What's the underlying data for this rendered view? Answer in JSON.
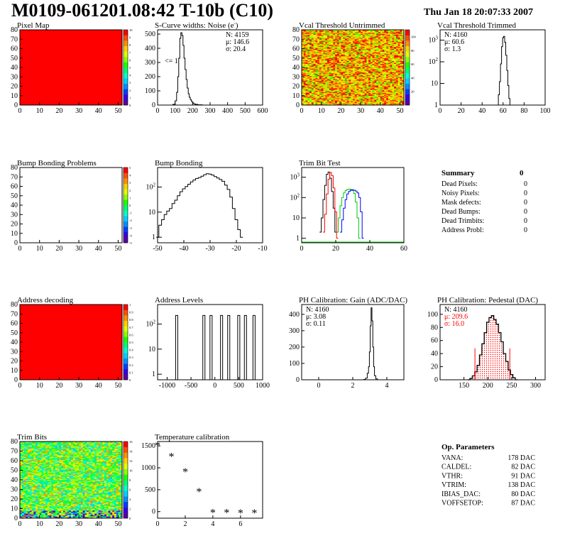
{
  "page": {
    "title": "M0109-061201.08:42 T-10b (C10)",
    "date": "Thu Jan 18 20:07:33 2007"
  },
  "colors": {
    "hist_line": "#000000",
    "red_series": "#ff0000",
    "green_series": "#00cc00",
    "blue_series": "#0000ff",
    "map_fill": "#ff0000",
    "palette": [
      "#5a00a0",
      "#3a00e6",
      "#0040ff",
      "#0090ff",
      "#00d0ff",
      "#00ffd0",
      "#00ff70",
      "#20ff00",
      "#90ff00",
      "#e0ff00",
      "#ffd000",
      "#ff9000",
      "#ff5000",
      "#ff0000"
    ]
  },
  "chart_data": [
    {
      "id": "pixel_map",
      "type": "heatmap",
      "title": "Pixel Map",
      "xlim": [
        0,
        52
      ],
      "ylim": [
        0,
        80
      ],
      "xticks": [
        0,
        10,
        20,
        30,
        40,
        50
      ],
      "yticks": [
        0,
        10,
        20,
        30,
        40,
        50,
        60,
        70,
        80
      ],
      "fill": "uniform",
      "value": 10,
      "zlim": [
        0,
        10
      ],
      "zticks": [
        0,
        1,
        2,
        3,
        4,
        5,
        6,
        7,
        8,
        9,
        10
      ]
    },
    {
      "id": "scurve",
      "type": "line",
      "title": "S-Curve widths: Noise (e",
      "title_sup": "-",
      "title_end": ")",
      "xlim": [
        0,
        600
      ],
      "ylim": [
        0,
        530
      ],
      "xticks": [
        0,
        100,
        200,
        300,
        400,
        500,
        600
      ],
      "yticks": [
        0,
        100,
        200,
        300,
        400,
        500
      ],
      "stats": {
        "N": "4159",
        "mu": "146.6",
        "sigma": "20.4"
      },
      "annotation": "<= 1",
      "x": [
        60,
        80,
        95,
        105,
        112,
        118,
        124,
        130,
        136,
        142,
        148,
        154,
        160,
        166,
        172,
        178,
        184,
        190,
        196,
        202,
        210,
        220,
        240,
        270
      ],
      "values": [
        0,
        0,
        5,
        30,
        90,
        200,
        330,
        470,
        510,
        490,
        420,
        330,
        250,
        180,
        120,
        80,
        55,
        38,
        26,
        16,
        9,
        5,
        2,
        0
      ]
    },
    {
      "id": "vcal_untrimmed",
      "type": "heatmap",
      "title": "Vcal Threshold Untrimmed",
      "xlim": [
        0,
        52
      ],
      "ylim": [
        0,
        80
      ],
      "xticks": [
        0,
        10,
        20,
        30,
        40,
        50
      ],
      "yticks": [
        0,
        10,
        20,
        30,
        40,
        50,
        60,
        70,
        80
      ],
      "fill": "random",
      "value_range": [
        60,
        110
      ],
      "zlim": [
        0,
        110
      ],
      "zticks": [
        20,
        40,
        60,
        80,
        100
      ]
    },
    {
      "id": "vcal_trimmed",
      "type": "line",
      "title": "Vcal Threshold Trimmed",
      "log": true,
      "xlim": [
        0,
        100
      ],
      "ylim": [
        1,
        3000
      ],
      "xticks": [
        0,
        20,
        40,
        60,
        80,
        100
      ],
      "yticks_log": [
        1,
        10,
        100,
        1000
      ],
      "stats": {
        "N": "4160",
        "mu": "60.6",
        "sigma": "1.3"
      },
      "x": [
        55,
        56,
        57,
        58,
        59,
        60,
        61,
        62,
        63,
        64,
        65,
        66,
        67
      ],
      "values": [
        1,
        3,
        12,
        80,
        500,
        1300,
        1500,
        800,
        200,
        40,
        8,
        2,
        1
      ]
    },
    {
      "id": "bump_problems",
      "type": "heatmap",
      "title": "Bump Bonding Problems",
      "xlim": [
        0,
        52
      ],
      "ylim": [
        0,
        80
      ],
      "xticks": [
        0,
        10,
        20,
        30,
        40,
        50
      ],
      "yticks": [
        0,
        10,
        20,
        30,
        40,
        50,
        60,
        70,
        80
      ],
      "fill": "empty",
      "zlim": [
        -5,
        5
      ],
      "zticks": [
        -5,
        -4,
        -3,
        -2,
        -1,
        0,
        1,
        2,
        3,
        4,
        5
      ]
    },
    {
      "id": "bump_bonding",
      "type": "line",
      "title": "Bump Bonding",
      "log": true,
      "xlim": [
        -50,
        -10
      ],
      "ylim": [
        0.6,
        600
      ],
      "xticks": [
        -50,
        -40,
        -30,
        -20,
        -10
      ],
      "yticks_log": [
        1,
        10,
        100
      ],
      "x": [
        -50,
        -49,
        -48,
        -47,
        -46,
        -45,
        -44,
        -43,
        -42,
        -41,
        -40,
        -39,
        -38,
        -37,
        -36,
        -35,
        -34,
        -33,
        -32,
        -31,
        -30,
        -29,
        -28,
        -27,
        -26,
        -25,
        -24,
        -23,
        -22,
        -21,
        -20,
        -19,
        -18
      ],
      "values": [
        1,
        3,
        5,
        8,
        11,
        14,
        22,
        30,
        45,
        65,
        85,
        105,
        130,
        160,
        190,
        220,
        240,
        270,
        310,
        340,
        330,
        300,
        260,
        230,
        200,
        170,
        120,
        80,
        40,
        14,
        5,
        2,
        1
      ]
    },
    {
      "id": "trim_bit_test",
      "type": "line",
      "title": "Trim Bit Test",
      "log": true,
      "xlim": [
        0,
        60
      ],
      "ylim": [
        0.6,
        3000
      ],
      "xticks": [
        0,
        20,
        40,
        60
      ],
      "yticks_log": [
        1,
        10,
        100,
        1000
      ],
      "series": [
        {
          "color": "#000000",
          "x": [
            11,
            12,
            13,
            14,
            15,
            16,
            17,
            18,
            19,
            20
          ],
          "values": [
            2,
            10,
            80,
            400,
            1400,
            1800,
            900,
            200,
            30,
            2
          ]
        },
        {
          "color": "#ff0000",
          "x": [
            13,
            14,
            15,
            16,
            17,
            18,
            19,
            20,
            21
          ],
          "values": [
            2,
            15,
            150,
            800,
            1700,
            1200,
            300,
            20,
            1
          ]
        },
        {
          "color": "#00cc00",
          "x": [
            21,
            22,
            23,
            24,
            25,
            26,
            27,
            28,
            29,
            30,
            31,
            32,
            33,
            34
          ],
          "values": [
            2,
            10,
            40,
            100,
            170,
            220,
            250,
            260,
            250,
            220,
            160,
            60,
            10,
            1
          ]
        },
        {
          "color": "#0000ff",
          "x": [
            23,
            24,
            25,
            26,
            27,
            28,
            29,
            30,
            31,
            32,
            33,
            34,
            35,
            36
          ],
          "values": [
            2,
            8,
            30,
            80,
            150,
            200,
            230,
            240,
            230,
            210,
            170,
            100,
            20,
            1
          ]
        }
      ]
    },
    {
      "id": "address_decoding",
      "type": "heatmap",
      "title": "Address decoding",
      "xlim": [
        0,
        52
      ],
      "ylim": [
        0,
        80
      ],
      "xticks": [
        0,
        10,
        20,
        30,
        40,
        50
      ],
      "yticks": [
        0,
        10,
        20,
        30,
        40,
        50,
        60,
        70,
        80
      ],
      "fill": "uniform",
      "value": 1,
      "zlim": [
        0,
        1
      ],
      "zticks": [
        0,
        0.1,
        0.2,
        0.3,
        0.4,
        0.5,
        0.6,
        0.7,
        0.8,
        0.9,
        1
      ]
    },
    {
      "id": "address_levels",
      "type": "line",
      "title": "Address Levels",
      "log": true,
      "xlim": [
        -1200,
        1000
      ],
      "ylim": [
        0.6,
        600
      ],
      "xticks": [
        -1000,
        -500,
        0,
        500,
        1000
      ],
      "yticks_log": [
        1,
        10,
        100
      ],
      "peaks": [
        -800,
        -230,
        -80,
        140,
        290,
        500,
        640,
        820
      ],
      "peak_width": 45,
      "peak_value": 220
    },
    {
      "id": "ph_gain",
      "type": "line",
      "title": "PH Calibration: Gain (ADC/DAC)",
      "xlim": [
        -1,
        5
      ],
      "ylim": [
        0,
        460
      ],
      "xticks": [
        0,
        2,
        4
      ],
      "yticks": [
        0,
        100,
        200,
        300,
        400
      ],
      "stats": {
        "N": "4160",
        "mu": "3.08",
        "sigma": "0.11"
      },
      "x": [
        2.6,
        2.7,
        2.8,
        2.9,
        2.95,
        3.0,
        3.05,
        3.1,
        3.15,
        3.2,
        3.25,
        3.3,
        3.4,
        3.5
      ],
      "values": [
        0,
        2,
        10,
        40,
        80,
        170,
        330,
        440,
        360,
        200,
        80,
        25,
        5,
        0
      ]
    },
    {
      "id": "ph_pedestal",
      "type": "line",
      "title": "PH Calibration: Pedestal (DAC)",
      "xlim": [
        100,
        320
      ],
      "ylim": [
        0,
        115
      ],
      "xticks": [
        150,
        200,
        250,
        300
      ],
      "yticks": [
        0,
        20,
        40,
        60,
        80,
        100
      ],
      "stats": {
        "N": "4160",
        "mu": "209.6",
        "sigma": "16.0"
      },
      "stats_colored": true,
      "cut_lines": [
        173,
        246
      ],
      "cut_height": 48,
      "x": [
        160,
        165,
        170,
        175,
        180,
        185,
        190,
        195,
        200,
        205,
        210,
        215,
        220,
        225,
        230,
        235,
        240,
        245,
        250,
        255,
        260
      ],
      "values": [
        0,
        2,
        6,
        12,
        22,
        38,
        55,
        72,
        88,
        95,
        98,
        92,
        85,
        72,
        58,
        40,
        28,
        15,
        8,
        3,
        0
      ]
    },
    {
      "id": "trim_bits",
      "type": "heatmap",
      "title": "Trim Bits",
      "xlim": [
        0,
        52
      ],
      "ylim": [
        0,
        80
      ],
      "xticks": [
        0,
        10,
        20,
        30,
        40,
        50
      ],
      "yticks": [
        0,
        10,
        20,
        30,
        40,
        50,
        60,
        70,
        80
      ],
      "fill": "random",
      "value_range": [
        5,
        13
      ],
      "zlim": [
        0,
        16
      ],
      "zticks": [
        0,
        2,
        4,
        6,
        8,
        10,
        12,
        14,
        16
      ]
    },
    {
      "id": "temperature",
      "type": "scatter",
      "title": "Temperature calibration",
      "xlim": [
        0,
        7.6
      ],
      "ylim": [
        -150,
        1600
      ],
      "xticks": [
        0,
        2,
        4,
        6
      ],
      "yticks": [
        0,
        500,
        1000,
        1500
      ],
      "x": [
        0,
        1,
        2,
        3,
        4,
        5,
        6,
        7
      ],
      "values": [
        1500,
        1250,
        900,
        450,
        -30,
        -30,
        -40,
        -40
      ]
    }
  ],
  "summary": {
    "title": "Summary",
    "total": "0",
    "rows": [
      {
        "label": "Dead Pixels:",
        "value": "0"
      },
      {
        "label": "Noisy Pixels:",
        "value": "0"
      },
      {
        "label": "Mask defects:",
        "value": "0"
      },
      {
        "label": "Dead Bumps:",
        "value": "0"
      },
      {
        "label": "Dead Trimbits:",
        "value": "0"
      },
      {
        "label": "Address Probl:",
        "value": "0"
      }
    ]
  },
  "op_parameters": {
    "title": "Op. Parameters",
    "rows": [
      {
        "label": "VANA:",
        "value": "178 DAC"
      },
      {
        "label": "CALDEL:",
        "value": "82 DAC"
      },
      {
        "label": "VTHR:",
        "value": "91 DAC"
      },
      {
        "label": "VTRIM:",
        "value": "138 DAC"
      },
      {
        "label": "IBIAS_DAC:",
        "value": "80 DAC"
      },
      {
        "label": "VOFFSETOP:",
        "value": "87 DAC"
      }
    ]
  }
}
